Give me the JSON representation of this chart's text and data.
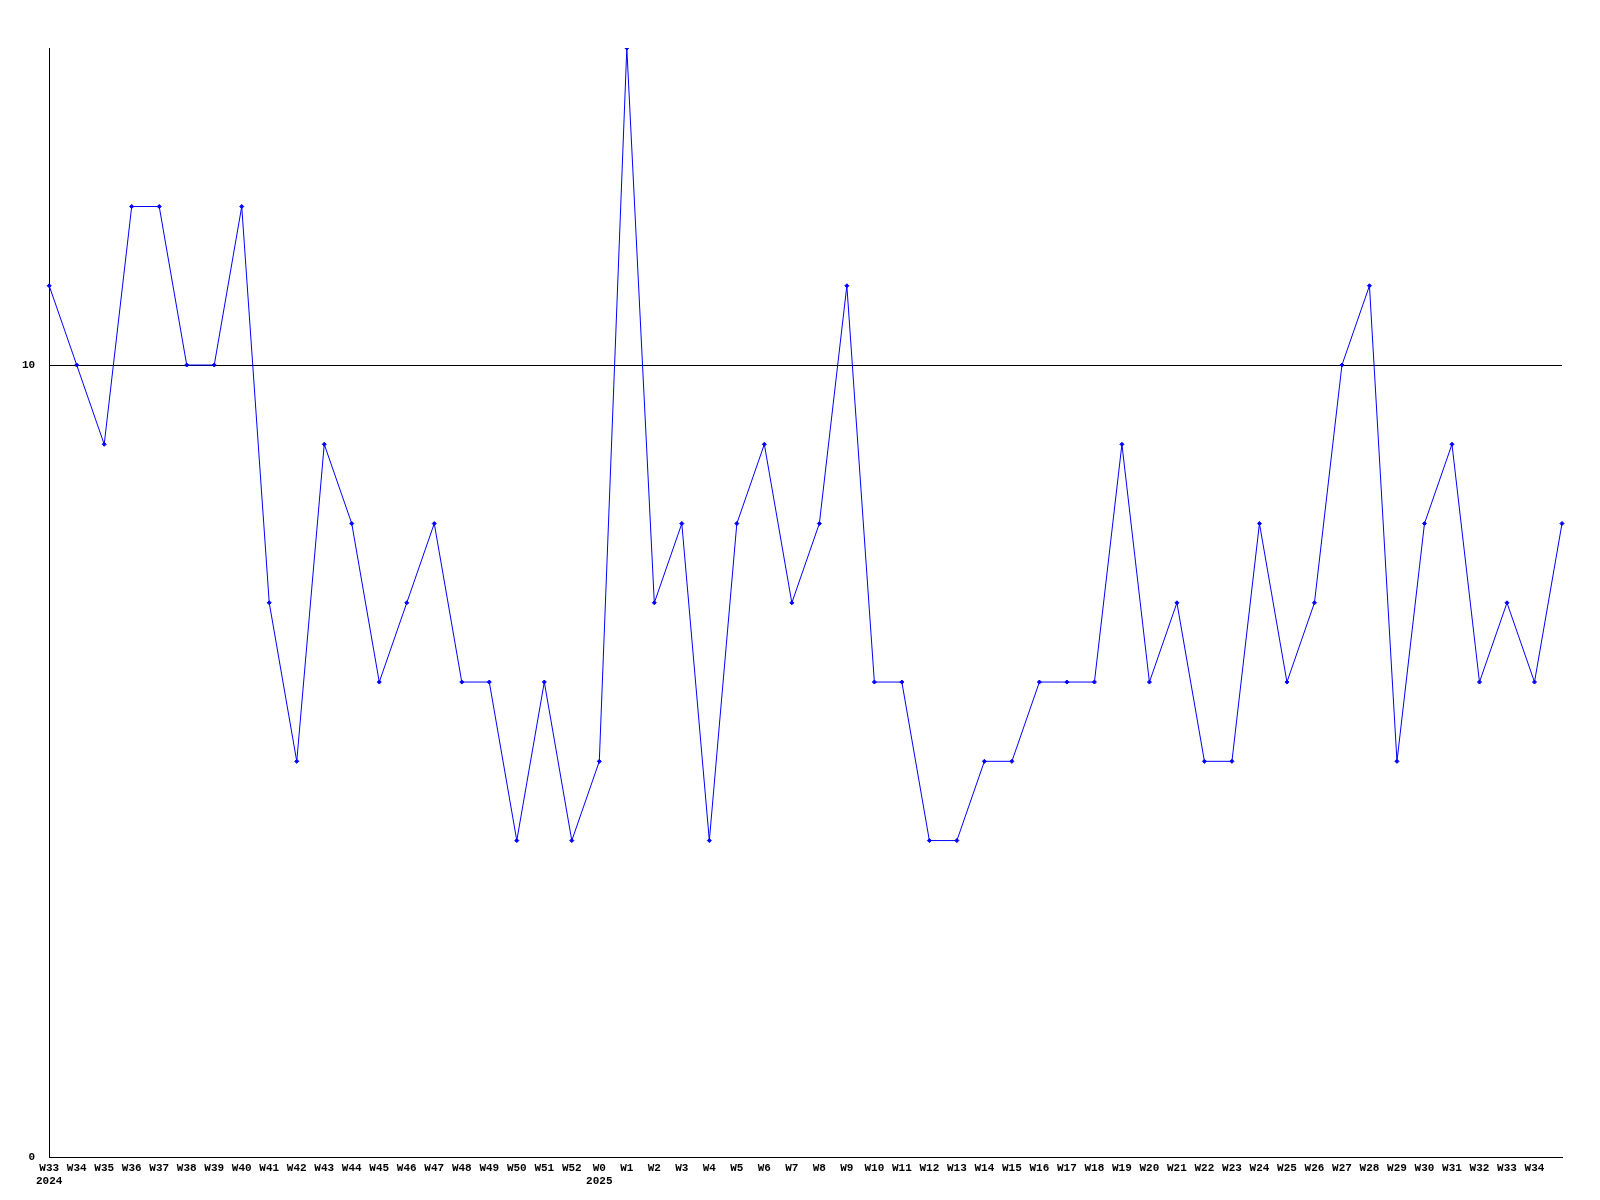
{
  "chart_data": {
    "type": "line",
    "categories": [
      "W33\n2024",
      "W34",
      "W35",
      "W36",
      "W37",
      "W38",
      "W39",
      "W40",
      "W41",
      "W42",
      "W43",
      "W44",
      "W45",
      "W46",
      "W47",
      "W48",
      "W49",
      "W50",
      "W51",
      "W52",
      "W0\n2025",
      "W1",
      "W2",
      "W3",
      "W4",
      "W5",
      "W6",
      "W7",
      "W8",
      "W9",
      "W10",
      "W11",
      "W12",
      "W13",
      "W14",
      "W15",
      "W16",
      "W17",
      "W18",
      "W19",
      "W20",
      "W21",
      "W22",
      "W23",
      "W24",
      "W25",
      "W26",
      "W27",
      "W28",
      "W29",
      "W30",
      "W31",
      "W32",
      "W33",
      "W34",
      null
    ],
    "series": [
      {
        "color": "#0000ff",
        "values": [
          11,
          10,
          9,
          12,
          12,
          10,
          10,
          12,
          7,
          5,
          9,
          8,
          6,
          7,
          8,
          6,
          6,
          4,
          6,
          4,
          5,
          14,
          7,
          8,
          4,
          8,
          9,
          7,
          8,
          11,
          6,
          6,
          4,
          4,
          5,
          5,
          6,
          6,
          6,
          9,
          6,
          7,
          5,
          5,
          8,
          6,
          7,
          10,
          11,
          5,
          8,
          9,
          6,
          7,
          6,
          8
        ]
      }
    ],
    "ylim": [
      0,
      14
    ],
    "yticks": [
      0,
      10
    ],
    "grid": "y",
    "legend": false,
    "marker": "diamond",
    "line_style": "solid"
  }
}
